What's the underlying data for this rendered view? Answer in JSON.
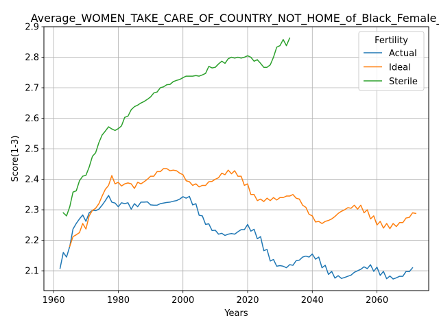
{
  "chart_data": {
    "type": "line",
    "title": "Average_WOMEN_TAKE_CARE_OF_COUNTRY_NOT_HOME_of_Black_Female_",
    "xlabel": "Years",
    "ylabel": "Score(1-3)",
    "xlim": [
      1957,
      2076
    ],
    "ylim": [
      2.035,
      2.9
    ],
    "xticks": [
      1960,
      1980,
      2000,
      2020,
      2040,
      2060
    ],
    "yticks": [
      2.1,
      2.2,
      2.3,
      2.4,
      2.5,
      2.6,
      2.7,
      2.8,
      2.9
    ],
    "xtick_labels": [
      "1960",
      "1980",
      "2000",
      "2020",
      "2040",
      "2060"
    ],
    "ytick_labels": [
      "2.1",
      "2.2",
      "2.3",
      "2.4",
      "2.5",
      "2.6",
      "2.7",
      "2.8",
      "2.9"
    ],
    "grid": true,
    "legend": {
      "title": "Fertility",
      "placement": "top-right"
    },
    "series": [
      {
        "name": "Actual",
        "color": "#1f77b4",
        "x_start": 1962,
        "values": [
          2.108,
          2.16,
          2.145,
          2.18,
          2.237,
          2.255,
          2.27,
          2.283,
          2.262,
          2.29,
          2.298,
          2.297,
          2.302,
          2.315,
          2.33,
          2.347,
          2.325,
          2.322,
          2.31,
          2.323,
          2.32,
          2.323,
          2.302,
          2.32,
          2.31,
          2.325,
          2.325,
          2.326,
          2.316,
          2.315,
          2.315,
          2.32,
          2.322,
          2.324,
          2.325,
          2.328,
          2.33,
          2.335,
          2.343,
          2.338,
          2.344,
          2.316,
          2.32,
          2.282,
          2.28,
          2.252,
          2.254,
          2.232,
          2.233,
          2.22,
          2.223,
          2.216,
          2.22,
          2.222,
          2.22,
          2.228,
          2.235,
          2.235,
          2.252,
          2.23,
          2.236,
          2.205,
          2.212,
          2.166,
          2.17,
          2.132,
          2.137,
          2.115,
          2.117,
          2.115,
          2.11,
          2.12,
          2.118,
          2.133,
          2.135,
          2.145,
          2.148,
          2.145,
          2.155,
          2.138,
          2.145,
          2.11,
          2.118,
          2.088,
          2.098,
          2.076,
          2.084,
          2.075,
          2.078,
          2.082,
          2.086,
          2.095,
          2.1,
          2.105,
          2.113,
          2.107,
          2.12,
          2.098,
          2.112,
          2.085,
          2.098,
          2.074,
          2.083,
          2.073,
          2.077,
          2.082,
          2.082,
          2.098,
          2.097,
          2.11
        ]
      },
      {
        "name": "Ideal",
        "color": "#ff7f0e",
        "x_start": 1965,
        "values": [
          2.18,
          2.212,
          2.218,
          2.225,
          2.255,
          2.237,
          2.28,
          2.298,
          2.305,
          2.32,
          2.345,
          2.367,
          2.38,
          2.412,
          2.385,
          2.39,
          2.378,
          2.385,
          2.388,
          2.385,
          2.37,
          2.39,
          2.385,
          2.392,
          2.4,
          2.41,
          2.41,
          2.425,
          2.425,
          2.435,
          2.435,
          2.428,
          2.43,
          2.428,
          2.42,
          2.415,
          2.395,
          2.392,
          2.38,
          2.385,
          2.375,
          2.38,
          2.38,
          2.392,
          2.393,
          2.4,
          2.405,
          2.42,
          2.415,
          2.43,
          2.418,
          2.428,
          2.41,
          2.41,
          2.38,
          2.385,
          2.35,
          2.35,
          2.33,
          2.335,
          2.327,
          2.338,
          2.33,
          2.34,
          2.332,
          2.34,
          2.34,
          2.345,
          2.345,
          2.35,
          2.338,
          2.335,
          2.315,
          2.308,
          2.285,
          2.28,
          2.26,
          2.262,
          2.255,
          2.262,
          2.265,
          2.27,
          2.278,
          2.288,
          2.295,
          2.3,
          2.307,
          2.305,
          2.315,
          2.302,
          2.315,
          2.29,
          2.3,
          2.27,
          2.28,
          2.25,
          2.262,
          2.24,
          2.255,
          2.238,
          2.255,
          2.245,
          2.258,
          2.258,
          2.273,
          2.275,
          2.29,
          2.288
        ]
      },
      {
        "name": "Sterile",
        "color": "#2ca02c",
        "x_start": 1963,
        "values": [
          2.29,
          2.28,
          2.31,
          2.358,
          2.362,
          2.395,
          2.41,
          2.413,
          2.44,
          2.475,
          2.487,
          2.52,
          2.545,
          2.558,
          2.572,
          2.565,
          2.56,
          2.566,
          2.575,
          2.603,
          2.607,
          2.628,
          2.638,
          2.643,
          2.65,
          2.655,
          2.662,
          2.67,
          2.683,
          2.686,
          2.7,
          2.703,
          2.71,
          2.711,
          2.72,
          2.724,
          2.727,
          2.733,
          2.738,
          2.738,
          2.738,
          2.74,
          2.738,
          2.742,
          2.747,
          2.77,
          2.765,
          2.767,
          2.778,
          2.787,
          2.78,
          2.795,
          2.8,
          2.797,
          2.8,
          2.797,
          2.8,
          2.805,
          2.8,
          2.787,
          2.792,
          2.78,
          2.767,
          2.767,
          2.775,
          2.8,
          2.833,
          2.838,
          2.858,
          2.838,
          2.863
        ]
      }
    ]
  }
}
